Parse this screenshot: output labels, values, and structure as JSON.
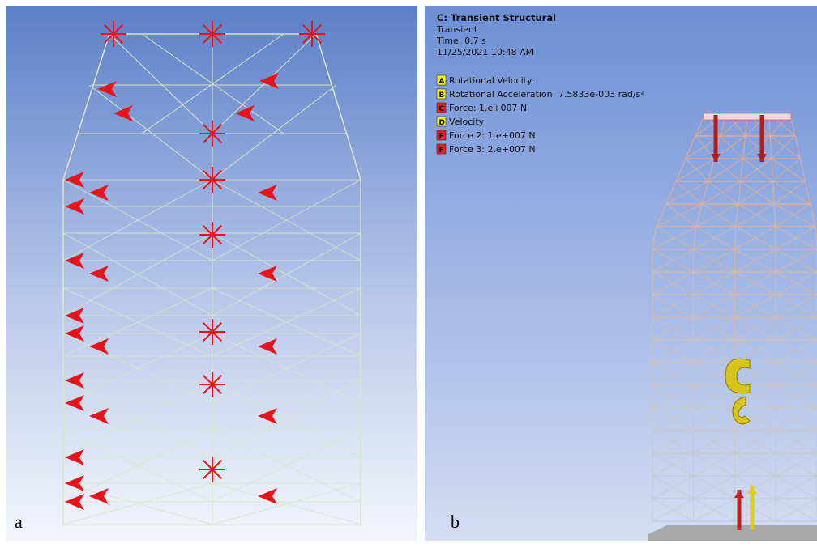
{
  "panels": [
    {
      "label": "a"
    },
    {
      "label": "b",
      "header": {
        "title": "C: Transient Structural",
        "subtitle": "Transient",
        "time": "Time: 0.7 s",
        "date": "11/25/2021 10:48 AM"
      },
      "legend": [
        {
          "key": "A",
          "text": "Rotational Velocity:",
          "color": "#f5f500"
        },
        {
          "key": "B",
          "text": "Rotational Acceleration: 7.5833e-003 rad/s²",
          "color": "#f5f500"
        },
        {
          "key": "C",
          "text": "Force: 1.e+007 N",
          "color": "#e02020"
        },
        {
          "key": "D",
          "text": "Velocity",
          "color": "#f5f500"
        },
        {
          "key": "E",
          "text": "Force 2: 1.e+007 N",
          "color": "#e02020"
        },
        {
          "key": "F",
          "text": "Force 3: 2.e+007 N",
          "color": "#e02020"
        }
      ]
    }
  ]
}
